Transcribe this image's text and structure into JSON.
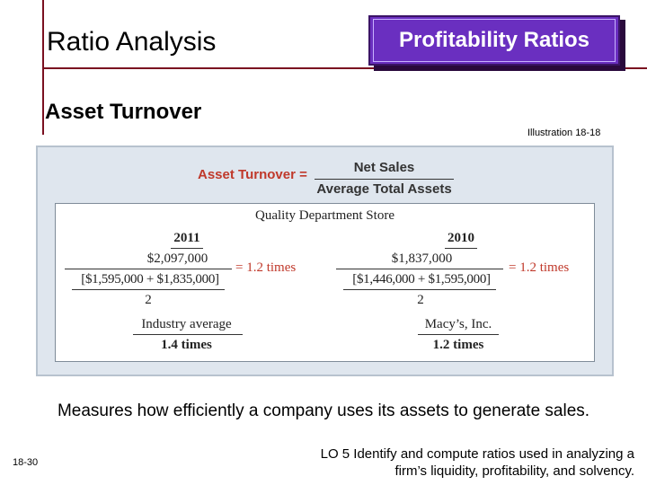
{
  "slide": {
    "title": "Ratio Analysis",
    "badge": "Profitability Ratios",
    "subtitle": "Asset Turnover",
    "illustration": "Illustration 18-18",
    "caption": "Measures how efficiently a company uses its assets to generate sales.",
    "page_number": "18-30",
    "lo_line1": "LO 5  Identify and compute ratios used in analyzing a",
    "lo_line2": "firm’s liquidity, profitability, and solvency."
  },
  "formula": {
    "label": "Asset Turnover =",
    "numerator": "Net Sales",
    "denominator": "Average Total Assets"
  },
  "example": {
    "company": "Quality Department Store",
    "years": [
      {
        "year": "2011",
        "numerator": "$2,097,000",
        "denominator": "[$1,595,000 + $1,835,000]",
        "divisor": "2",
        "result": "= 1.2 times"
      },
      {
        "year": "2010",
        "numerator": "$1,837,000",
        "denominator": "[$1,446,000 + $1,595,000]",
        "divisor": "2",
        "result": "= 1.2 times"
      }
    ],
    "industry_label": "Industry average",
    "industry_value": "1.4 times",
    "peer_label": "Macy’s, Inc.",
    "peer_value": "1.2 times"
  },
  "colors": {
    "accent_line": "#7a1020",
    "badge_fill": "#6a2fc0",
    "formula_red": "#c0392b",
    "panel_bg": "#dfe6ee"
  }
}
